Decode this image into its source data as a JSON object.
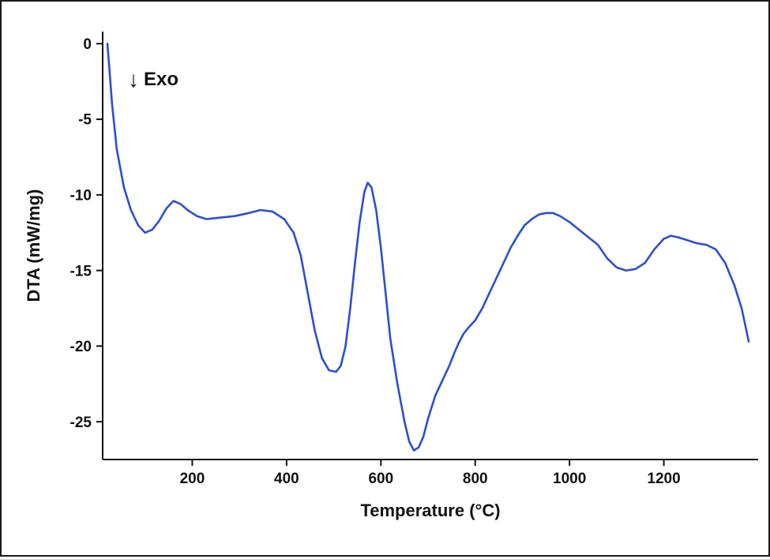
{
  "figure": {
    "exo_arrow": "↓",
    "exo_label": "Exo"
  },
  "chart_data": {
    "type": "line",
    "title": "",
    "xlabel": "Temperature (°C)",
    "ylabel": "DTA (mW/mg)",
    "xlim": [
      10,
      1400
    ],
    "ylim": [
      -27.5,
      0.8
    ],
    "x_ticks": [
      200,
      400,
      600,
      800,
      1000,
      1200
    ],
    "y_ticks": [
      0,
      -5,
      -10,
      -15,
      -20,
      -25
    ],
    "grid": false,
    "legend": "none",
    "line_color": "#2a4fd4",
    "axis_color": "#111111",
    "series": [
      {
        "name": "DTA",
        "x": [
          20,
          25,
          30,
          40,
          55,
          70,
          85,
          100,
          115,
          130,
          145,
          160,
          175,
          190,
          210,
          230,
          260,
          290,
          320,
          345,
          370,
          395,
          415,
          430,
          445,
          460,
          475,
          490,
          505,
          515,
          525,
          535,
          545,
          555,
          565,
          572,
          580,
          590,
          600,
          610,
          620,
          635,
          650,
          660,
          670,
          680,
          690,
          700,
          715,
          730,
          745,
          755,
          765,
          775,
          785,
          800,
          815,
          830,
          845,
          860,
          875,
          890,
          905,
          920,
          935,
          950,
          965,
          980,
          1000,
          1020,
          1040,
          1060,
          1080,
          1100,
          1120,
          1140,
          1160,
          1180,
          1200,
          1215,
          1230,
          1250,
          1270,
          1290,
          1310,
          1330,
          1350,
          1365,
          1380
        ],
        "y": [
          0,
          -2,
          -4,
          -7,
          -9.5,
          -11,
          -12,
          -12.5,
          -12.3,
          -11.7,
          -10.9,
          -10.4,
          -10.6,
          -11,
          -11.4,
          -11.6,
          -11.5,
          -11.4,
          -11.2,
          -11.0,
          -11.1,
          -11.6,
          -12.5,
          -14,
          -16.5,
          -19,
          -20.8,
          -21.6,
          -21.7,
          -21.3,
          -20,
          -17.5,
          -14.5,
          -11.8,
          -9.8,
          -9.2,
          -9.5,
          -11,
          -13.5,
          -16.5,
          -19.5,
          -22.5,
          -25,
          -26.3,
          -26.9,
          -26.7,
          -26,
          -24.8,
          -23.3,
          -22.3,
          -21.3,
          -20.5,
          -19.8,
          -19.2,
          -18.8,
          -18.3,
          -17.5,
          -16.5,
          -15.5,
          -14.5,
          -13.5,
          -12.7,
          -12,
          -11.6,
          -11.3,
          -11.2,
          -11.2,
          -11.4,
          -11.8,
          -12.3,
          -12.8,
          -13.3,
          -14.2,
          -14.8,
          -15.0,
          -14.9,
          -14.5,
          -13.6,
          -12.9,
          -12.7,
          -12.8,
          -13.0,
          -13.2,
          -13.3,
          -13.6,
          -14.5,
          -16,
          -17.5,
          -19.7
        ]
      }
    ]
  }
}
